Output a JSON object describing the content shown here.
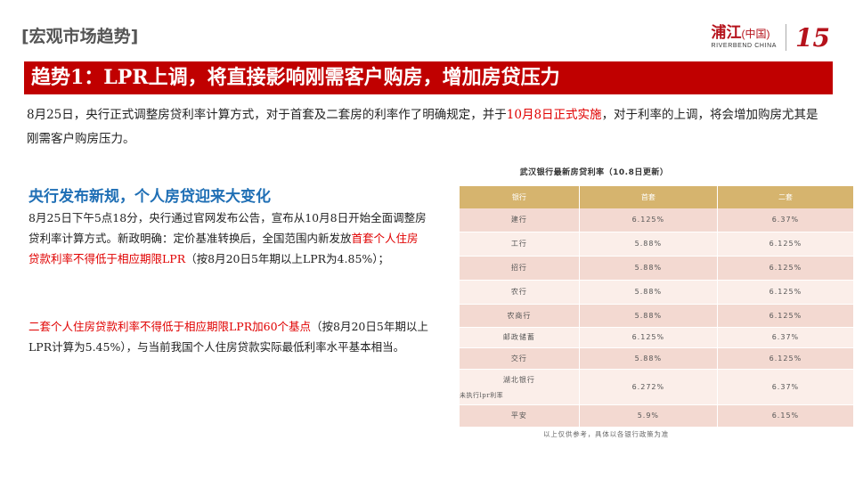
{
  "header": {
    "section_label": "[宏观市场趋势]",
    "brand_cn": "浦江",
    "brand_cn_suffix": "(中国)",
    "brand_en": "RIVERBEND CHINA",
    "brand_anniversary": "15"
  },
  "title": "趋势1：LPR上调，将直接影响刚需客户购房，增加房贷压力",
  "intro": {
    "part1": "8月25日，央行正式调整房贷利率计算方式，对于首套及二套房的利率作了明确规定，并于",
    "highlight": "10月8日正式实施",
    "part2": "，对于利率的上调，将会增加购房尤其是刚需客户购房压力。"
  },
  "left": {
    "heading": "央行发布新规，个人房贷迎来大变化",
    "para1_part1": "8月25日下午5点18分，央行通过官网发布公告，宣布从10月8日开始全面调整房贷利率计算方式。新政明确：定价基准转换后，全国范围内新发放",
    "para1_highlight": "首套个人住房贷款利率不得低于相应期限LPR",
    "para1_part2": "（按8月20日5年期以上LPR为4.85%）；",
    "para2_highlight": "二套个人住房贷款利率不得低于相应期限LPR加60个基点",
    "para2_part2": "（按8月20日5年期以上LPR计算为5.45%），与当前我国个人住房贷款实际最低利率水平基本相当。"
  },
  "table": {
    "caption": "武汉银行最新房贷利率（10.8日更新）",
    "headers": [
      "银行",
      "首套",
      "二套"
    ],
    "rows": [
      [
        "建行",
        "6.125%",
        "6.37%"
      ],
      [
        "工行",
        "5.88%",
        "6.125%"
      ],
      [
        "招行",
        "5.88%",
        "6.125%"
      ],
      [
        "农行",
        "5.88%",
        "6.125%"
      ],
      [
        "农商行",
        "5.88%",
        "6.125%"
      ],
      [
        "邮政储蓄",
        "6.125%",
        "6.37%"
      ],
      [
        "交行",
        "5.88%",
        "6.125%"
      ],
      [
        "湖北银行",
        "6.272%",
        "6.37%"
      ],
      [
        "平安",
        "5.9%",
        "6.15%"
      ]
    ],
    "row8_note": "未执行lpr利率",
    "footnote": "以上仅供参考，具体以各银行政策为准"
  }
}
